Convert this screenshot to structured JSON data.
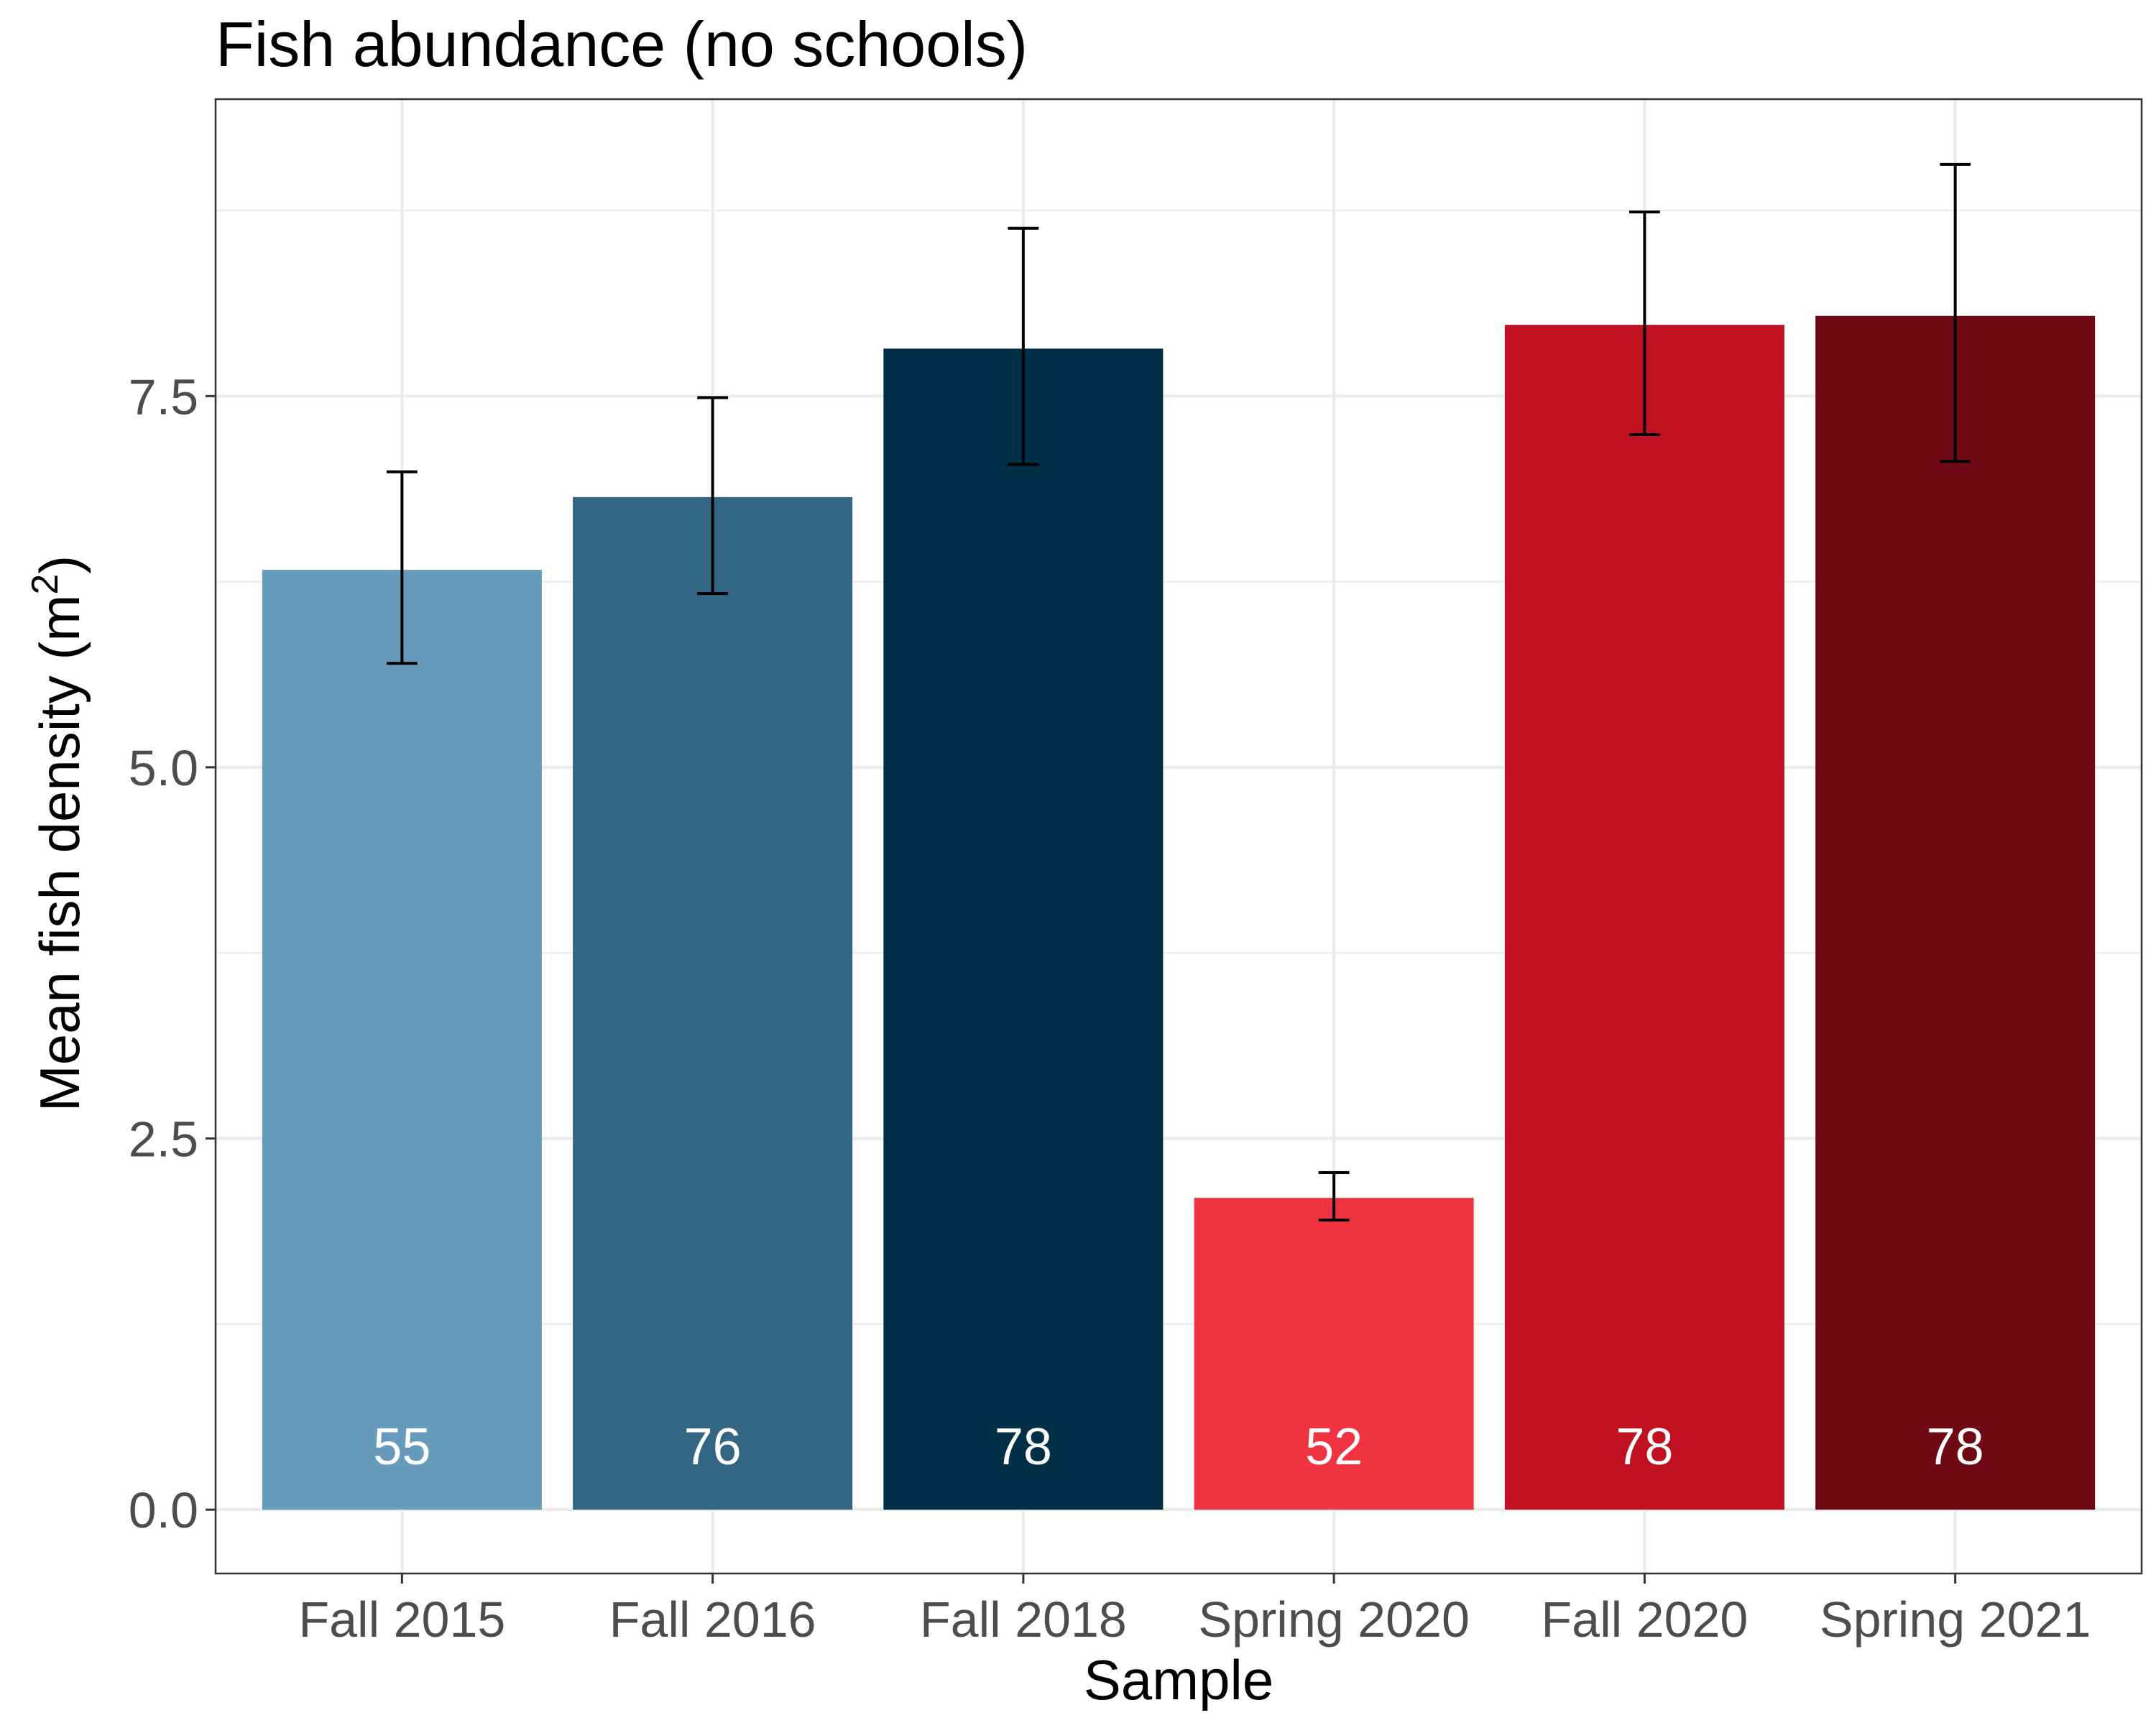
{
  "chart_data": {
    "type": "bar",
    "title": "Fish abundance (no schools)",
    "xlabel": "Sample",
    "ylabel": "Mean fish density (m",
    "ylabel_superscript": "2",
    "ylabel_suffix": ")",
    "categories": [
      "Fall 2015",
      "Fall 2016",
      "Fall 2018",
      "Spring 2020",
      "Fall 2020",
      "Spring 2021"
    ],
    "values": [
      6.33,
      6.82,
      7.82,
      2.1,
      7.98,
      8.04
    ],
    "error_low": [
      5.7,
      6.17,
      7.04,
      1.95,
      7.24,
      7.06
    ],
    "error_high": [
      6.99,
      7.49,
      8.63,
      2.27,
      8.74,
      9.06
    ],
    "bar_labels": [
      "55",
      "76",
      "78",
      "52",
      "78",
      "78"
    ],
    "colors": [
      "#669bbc",
      "#336682",
      "#012f48",
      "#ef3340",
      "#c11121",
      "#6f0a14"
    ],
    "ylim": [
      -0.43,
      9.5
    ],
    "yticks": [
      0.0,
      2.5,
      5.0,
      7.5
    ],
    "ytick_labels": [
      "0.0",
      "2.5",
      "5.0",
      "7.5"
    ],
    "grid": true,
    "legend": "none",
    "theme": "bw"
  }
}
